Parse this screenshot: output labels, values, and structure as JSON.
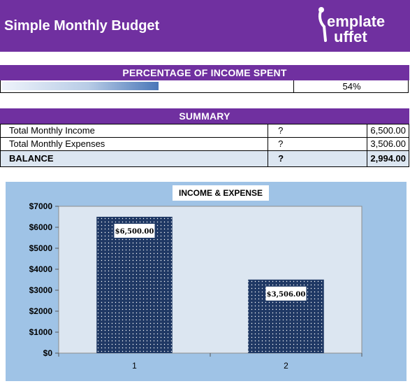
{
  "header": {
    "title": "Simple Monthly Budget",
    "logo_text_top": "emplate",
    "logo_text_bottom": "uffet"
  },
  "percentage": {
    "heading": "PERCENTAGE OF INCOME SPENT",
    "value_text": "54%",
    "fraction": 0.54
  },
  "summary": {
    "heading": "SUMMARY",
    "rows": [
      {
        "label": "Total Monthly Income",
        "q": "?",
        "amount": "6,500.00"
      },
      {
        "label": "Total Monthly Expenses",
        "q": "?",
        "amount": "3,506.00"
      }
    ],
    "balance": {
      "label": "BALANCE",
      "q": "?",
      "amount": "2,994.00"
    }
  },
  "colors": {
    "brand": "#7030a0",
    "bar": "#1f3864",
    "plot_bg": "#dce6f1",
    "chart_bg": "#9fc3e6"
  },
  "chart_data": {
    "type": "bar",
    "title": "INCOME & EXPENSE",
    "categories": [
      "1",
      "2"
    ],
    "values": [
      6500,
      3506
    ],
    "data_labels": [
      "$6,500.00",
      "$3,506.00"
    ],
    "y_ticks": [
      0,
      1000,
      2000,
      3000,
      4000,
      5000,
      6000,
      7000
    ],
    "y_tick_labels": [
      "$0",
      "$1000",
      "$2000",
      "$3000",
      "$4000",
      "$5000",
      "$6000",
      "$7000"
    ],
    "ylim": [
      0,
      7000
    ],
    "grid": false,
    "legend": "none"
  }
}
